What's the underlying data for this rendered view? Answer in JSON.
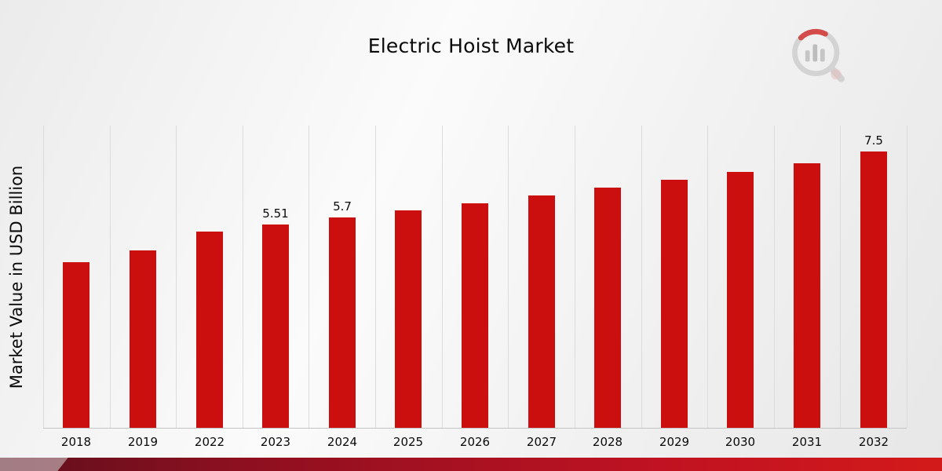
{
  "title": "Electric Hoist Market",
  "y_axis_label": "Market Value in USD Billion",
  "brand": {
    "logo_icon": "bar-chart-magnifier-logo"
  },
  "colors": {
    "bar_red": "#cb0e0e",
    "ribbon_dark_red": "#5f0e1c",
    "ribbon_bright_red": "#d31a1a",
    "gridline_gray": "#dcdcdc"
  },
  "chart_data": {
    "type": "bar",
    "title": "Electric Hoist Market",
    "xlabel": "",
    "ylabel": "Market Value in USD Billion",
    "categories": [
      "2018",
      "2019",
      "2022",
      "2023",
      "2024",
      "2025",
      "2026",
      "2027",
      "2028",
      "2029",
      "2030",
      "2031",
      "2032"
    ],
    "values": [
      4.5,
      4.82,
      5.32,
      5.51,
      5.7,
      5.9,
      6.1,
      6.3,
      6.52,
      6.73,
      6.95,
      7.18,
      7.5
    ],
    "bar_labels": [
      "",
      "",
      "",
      "5.51",
      "5.7",
      "",
      "",
      "",
      "",
      "",
      "",
      "",
      "7.5"
    ],
    "ylim": [
      0,
      8.2
    ],
    "grid": "vertical-only",
    "legend": "none",
    "bar_color": "#cb0e0e"
  }
}
